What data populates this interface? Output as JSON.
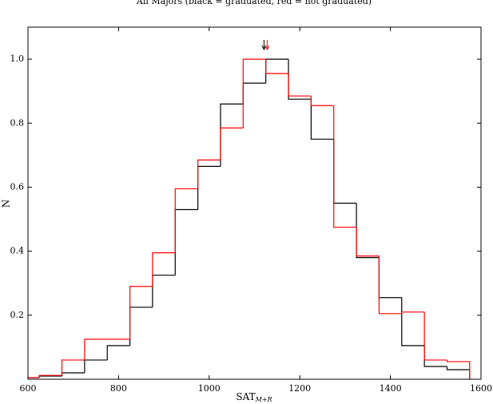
{
  "chart_data": {
    "type": "histogram",
    "title": "All Majors (black = graduated, red = not graduated)",
    "xlabel": {
      "text": "SAT",
      "subscript": "M+R"
    },
    "ylabel": "N",
    "bins": [
      575,
      625,
      675,
      725,
      775,
      825,
      875,
      925,
      975,
      1025,
      1075,
      1125,
      1175,
      1225,
      1275,
      1325,
      1375,
      1425,
      1475,
      1525,
      1575
    ],
    "series": [
      {
        "color": "#000000",
        "mean": 1121,
        "values": [
          0.005,
          0.01,
          0.02,
          0.06,
          0.105,
          0.225,
          0.325,
          0.53,
          0.665,
          0.86,
          0.925,
          1.0,
          0.875,
          0.75,
          0.55,
          0.38,
          0.255,
          0.105,
          0.04,
          0.03
        ]
      },
      {
        "color": "#ff0000",
        "mean": 1128,
        "values": [
          0.005,
          0.012,
          0.06,
          0.125,
          0.125,
          0.29,
          0.395,
          0.595,
          0.685,
          0.785,
          1.0,
          0.955,
          0.885,
          0.855,
          0.475,
          0.385,
          0.205,
          0.21,
          0.06,
          0.055
        ]
      }
    ],
    "xlim": [
      600,
      1600
    ],
    "ylim": [
      0,
      1.1
    ],
    "xticks": [
      600,
      800,
      1000,
      1200,
      1400,
      1600
    ],
    "yticks": [
      0.2,
      0.4,
      0.6,
      0.8,
      {
        "value": 1,
        "label": "1.0"
      }
    ],
    "grid": false
  }
}
